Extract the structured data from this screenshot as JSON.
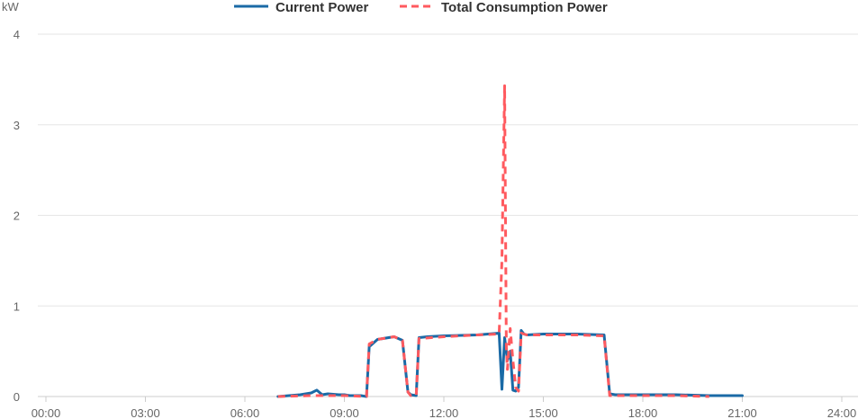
{
  "chart_data": {
    "type": "line",
    "y_unit": "kW",
    "ylim": [
      0,
      4
    ],
    "xlim": [
      "00:00",
      "24:00"
    ],
    "y_ticks": [
      "0",
      "1",
      "2",
      "3",
      "4"
    ],
    "x_ticks": [
      "00:00",
      "03:00",
      "06:00",
      "09:00",
      "12:00",
      "15:00",
      "18:00",
      "21:00",
      "24:00"
    ],
    "grid": true,
    "legend_position": "top-center",
    "series": [
      {
        "name": "Current Power",
        "color": "#1a6aa6",
        "style": "solid",
        "x": [
          "07:00",
          "07:40",
          "08:00",
          "08:10",
          "08:20",
          "08:30",
          "08:50",
          "09:00",
          "09:10",
          "09:30",
          "09:40",
          "09:45",
          "10:00",
          "10:30",
          "10:45",
          "10:55",
          "11:00",
          "11:10",
          "11:15",
          "11:30",
          "12:00",
          "13:00",
          "13:40",
          "13:45",
          "13:50",
          "13:55",
          "14:00",
          "14:05",
          "14:10",
          "14:15",
          "14:20",
          "14:25",
          "14:30",
          "15:00",
          "16:00",
          "16:50",
          "17:00",
          "17:10",
          "18:00",
          "19:00",
          "20:00",
          "21:00"
        ],
        "y": [
          0.0,
          0.02,
          0.04,
          0.07,
          0.02,
          0.03,
          0.02,
          0.02,
          0.01,
          0.01,
          0.0,
          0.55,
          0.63,
          0.66,
          0.62,
          0.05,
          0.02,
          0.01,
          0.65,
          0.66,
          0.67,
          0.68,
          0.7,
          0.08,
          0.65,
          0.4,
          0.5,
          0.07,
          0.06,
          0.1,
          0.73,
          0.69,
          0.68,
          0.69,
          0.69,
          0.68,
          0.03,
          0.02,
          0.02,
          0.02,
          0.01,
          0.01
        ]
      },
      {
        "name": "Total Consumption Power",
        "color": "#ff5a5f",
        "style": "dashed",
        "x": [
          "07:00",
          "08:00",
          "09:00",
          "09:40",
          "09:45",
          "10:00",
          "10:30",
          "10:45",
          "10:55",
          "11:00",
          "11:10",
          "11:15",
          "12:00",
          "13:00",
          "13:40",
          "13:45",
          "13:47",
          "13:50",
          "13:53",
          "13:55",
          "14:00",
          "14:05",
          "14:10",
          "14:15",
          "14:20",
          "14:30",
          "15:00",
          "16:00",
          "16:50",
          "17:00",
          "18:00",
          "19:00",
          "20:00"
        ],
        "y": [
          0.0,
          0.01,
          0.01,
          0.0,
          0.58,
          0.63,
          0.66,
          0.62,
          0.05,
          0.01,
          0.01,
          0.64,
          0.66,
          0.68,
          0.69,
          1.5,
          2.3,
          3.43,
          0.55,
          0.3,
          0.75,
          0.4,
          0.1,
          0.06,
          0.7,
          0.68,
          0.68,
          0.68,
          0.67,
          0.01,
          0.01,
          0.01,
          0.0
        ]
      }
    ]
  }
}
